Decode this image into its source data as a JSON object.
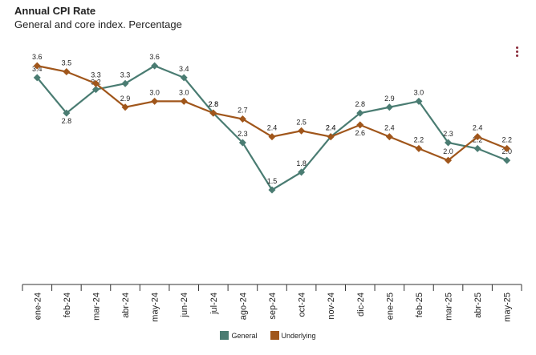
{
  "header": {
    "title": "Annual CPI Rate",
    "subtitle": "General and core index. Percentage"
  },
  "menu": {
    "icon": "vertical-dots-menu-icon"
  },
  "chart_data": {
    "type": "line",
    "title": "Annual CPI Rate",
    "subtitle": "General and core index. Percentage",
    "categories": [
      "ene-24",
      "feb-24",
      "mar-24",
      "abr-24",
      "may-24",
      "jun-24",
      "jul-24",
      "ago-24",
      "sep-24",
      "oct-24",
      "nov-24",
      "dic-24",
      "ene-25",
      "feb-25",
      "mar-25",
      "abr-25",
      "may-25"
    ],
    "ylim": [
      -0.1,
      3.9
    ],
    "grid": false,
    "legend_position": "bottom",
    "series": [
      {
        "name": "General",
        "color": "#4a7c72",
        "marker": "diamond",
        "values": [
          3.4,
          2.8,
          3.2,
          3.3,
          3.6,
          3.4,
          2.8,
          2.3,
          1.5,
          1.8,
          2.4,
          2.8,
          2.9,
          3.0,
          2.3,
          2.2,
          2.0
        ]
      },
      {
        "name": "Underlying",
        "color": "#a0561b",
        "marker": "diamond",
        "values": [
          3.6,
          3.5,
          3.3,
          2.9,
          3.0,
          3.0,
          2.8,
          2.7,
          2.4,
          2.5,
          2.4,
          2.6,
          2.4,
          2.2,
          2.0,
          2.4,
          2.2
        ]
      }
    ]
  }
}
